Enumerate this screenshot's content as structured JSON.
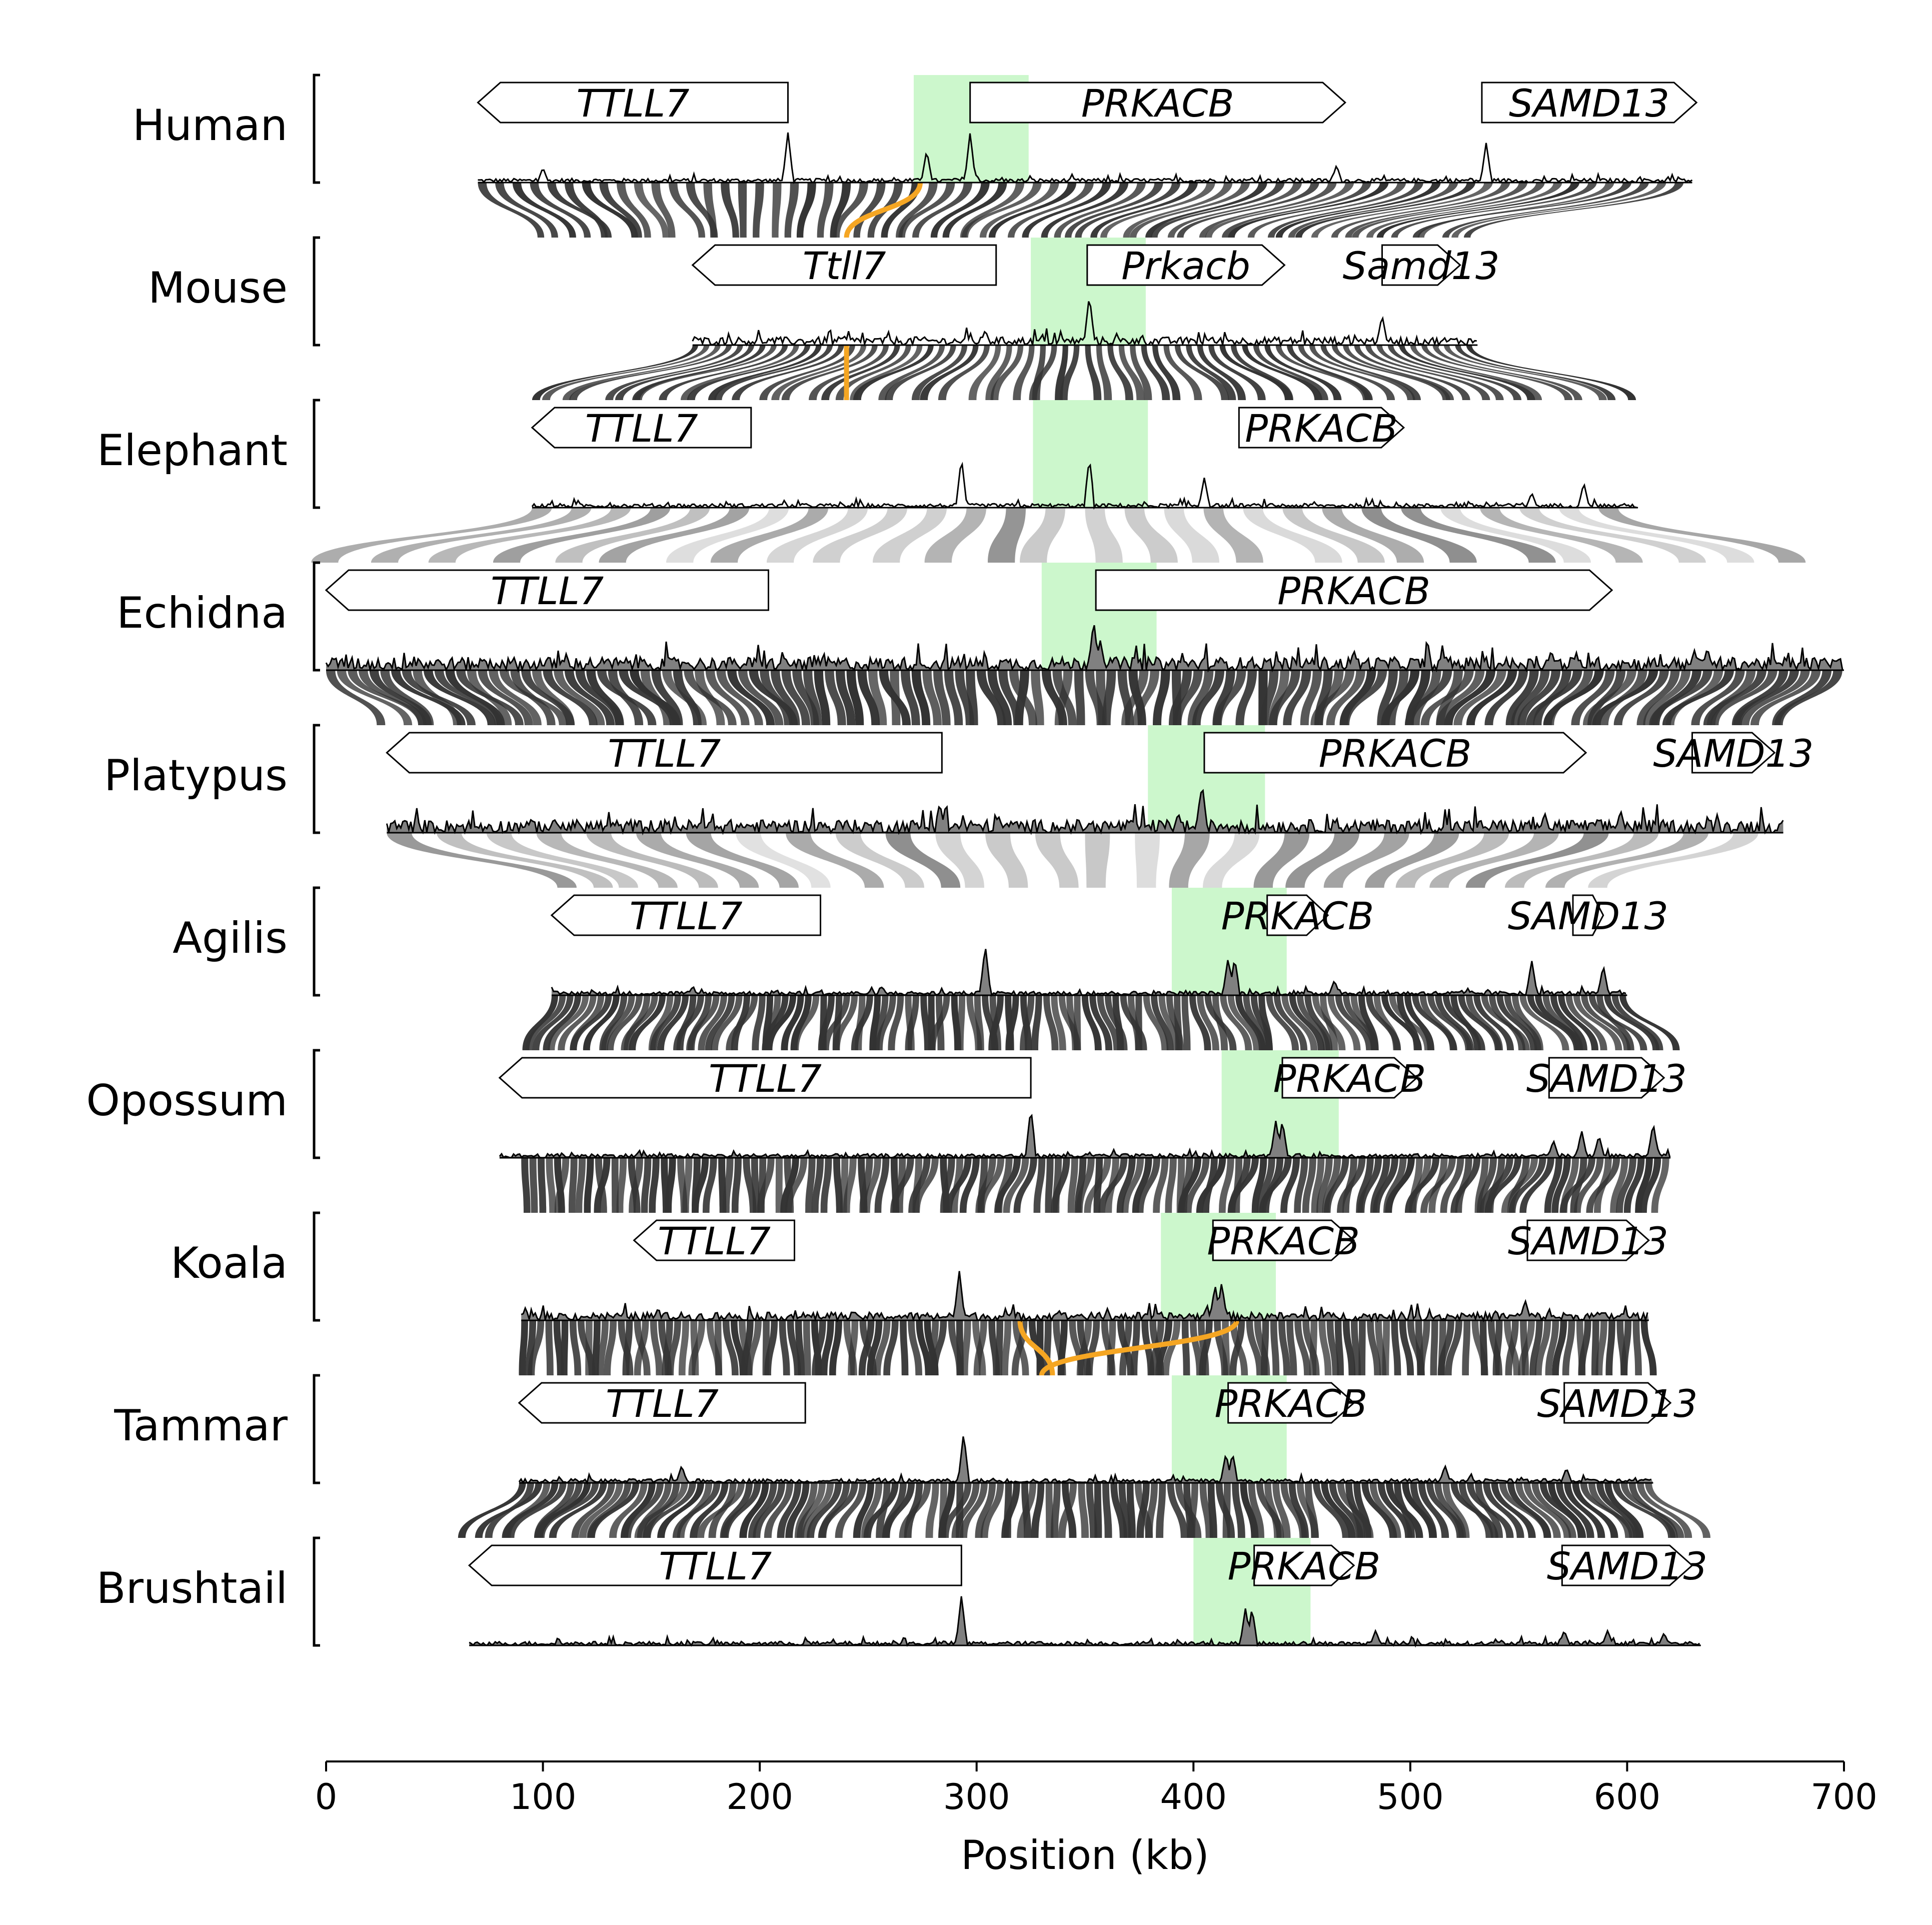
{
  "figure": {
    "xlabel": "Position (kb)",
    "x_ticks": [
      0,
      100,
      200,
      300,
      400,
      500,
      600,
      700
    ],
    "x_range": [
      0,
      700
    ]
  },
  "colors": {
    "gene_fill": "#ffffff",
    "gene_stroke": "#000000",
    "highlight": "#ccf7cc",
    "link_dark": "#333333",
    "link_inverted": "#f5a623",
    "track_fill": "#808080",
    "track_line": "#000000"
  },
  "tracks": [
    {
      "species": "Human",
      "range": [
        70,
        630
      ],
      "highlight": [
        271,
        324
      ],
      "peaks": [
        [
          100,
          0.3
        ],
        [
          213,
          1.0
        ],
        [
          277,
          0.65
        ],
        [
          297,
          1.0
        ],
        [
          466,
          0.35
        ],
        [
          535,
          0.8
        ]
      ],
      "noise": "low",
      "filled": false,
      "genes": [
        {
          "name": "TTLL7",
          "start": 70,
          "end": 213,
          "strand": "-"
        },
        {
          "name": "PRKACB",
          "start": 297,
          "end": 470,
          "strand": "+"
        },
        {
          "name": "SAMD13",
          "start": 533,
          "end": 632,
          "strand": "+"
        }
      ]
    },
    {
      "species": "Mouse",
      "range": [
        169,
        531
      ],
      "highlight": [
        325,
        378
      ],
      "peaks": [
        [
          352,
          1.0
        ],
        [
          304,
          0.3
        ],
        [
          487,
          0.6
        ]
      ],
      "noise": "medium",
      "filled": false,
      "genes": [
        {
          "name": "Ttll7",
          "start": 169,
          "end": 309,
          "strand": "-"
        },
        {
          "name": "Prkacb",
          "start": 351,
          "end": 442,
          "strand": "+"
        },
        {
          "name": "Samd13",
          "start": 487,
          "end": 523,
          "strand": "+"
        }
      ]
    },
    {
      "species": "Elephant",
      "range": [
        95,
        605
      ],
      "highlight": [
        326,
        379
      ],
      "peaks": [
        [
          293,
          1.0
        ],
        [
          352,
          1.0
        ],
        [
          405,
          0.6
        ],
        [
          580,
          0.5
        ],
        [
          556,
          0.3
        ]
      ],
      "noise": "low",
      "filled": false,
      "genes": [
        {
          "name": "TTLL7",
          "start": 95,
          "end": 196,
          "strand": "-"
        },
        {
          "name": "PRKACB",
          "start": 421,
          "end": 497,
          "strand": "+"
        }
      ]
    },
    {
      "species": "Echidna",
      "range": [
        0,
        700
      ],
      "highlight": [
        330,
        383
      ],
      "peaks": [
        [
          354,
          1.0
        ],
        [
          357,
          0.6
        ],
        [
          474,
          0.4
        ],
        [
          565,
          0.4
        ],
        [
          637,
          0.45
        ],
        [
          631,
          0.4
        ]
      ],
      "noise": "high",
      "filled": true,
      "genes": [
        {
          "name": "TTLL7",
          "start": 0,
          "end": 204,
          "strand": "-"
        },
        {
          "name": "PRKACB",
          "start": 355,
          "end": 593,
          "strand": "+"
        }
      ]
    },
    {
      "species": "Platypus",
      "range": [
        28,
        672
      ],
      "highlight": [
        379,
        433
      ],
      "peaks": [
        [
          283,
          0.6
        ],
        [
          310,
          0.35
        ],
        [
          404,
          1.0
        ],
        [
          393,
          0.4
        ],
        [
          562,
          0.4
        ],
        [
          597,
          0.45
        ]
      ],
      "noise": "high",
      "filled": true,
      "genes": [
        {
          "name": "TTLL7",
          "start": 28,
          "end": 284,
          "strand": "-"
        },
        {
          "name": "PRKACB",
          "start": 405,
          "end": 581,
          "strand": "+"
        },
        {
          "name": "SAMD13",
          "start": 630,
          "end": 668,
          "strand": "+"
        }
      ]
    },
    {
      "species": "Agilis",
      "range": [
        104,
        600
      ],
      "highlight": [
        390,
        443
      ],
      "peaks": [
        [
          304,
          1.0
        ],
        [
          416,
          0.75
        ],
        [
          419,
          0.75
        ],
        [
          556,
          0.7
        ],
        [
          589,
          0.6
        ],
        [
          465,
          0.3
        ]
      ],
      "noise": "low",
      "filled": true,
      "genes": [
        {
          "name": "TTLL7",
          "start": 104,
          "end": 228,
          "strand": "-"
        },
        {
          "name": "PRKACB",
          "start": 434,
          "end": 462,
          "strand": "+"
        },
        {
          "name": "SAMD13",
          "start": 575,
          "end": 589,
          "strand": "+"
        }
      ]
    },
    {
      "species": "Opossum",
      "range": [
        80,
        620
      ],
      "highlight": [
        413,
        467
      ],
      "peaks": [
        [
          325,
          1.0
        ],
        [
          438,
          0.75
        ],
        [
          441,
          0.75
        ],
        [
          566,
          0.35
        ],
        [
          579,
          0.55
        ],
        [
          612,
          0.7
        ],
        [
          587,
          0.45
        ]
      ],
      "noise": "low",
      "filled": true,
      "genes": [
        {
          "name": "TTLL7",
          "start": 80,
          "end": 325,
          "strand": "-"
        },
        {
          "name": "PRKACB",
          "start": 441,
          "end": 503,
          "strand": "+"
        },
        {
          "name": "SAMD13",
          "start": 564,
          "end": 617,
          "strand": "+"
        }
      ]
    },
    {
      "species": "Koala",
      "range": [
        90,
        610
      ],
      "highlight": [
        385,
        438
      ],
      "peaks": [
        [
          292,
          1.0
        ],
        [
          410,
          0.7
        ],
        [
          413,
          0.75
        ],
        [
          553,
          0.4
        ],
        [
          338,
          0.2
        ]
      ],
      "noise": "medium",
      "filled": true,
      "genes": [
        {
          "name": "TTLL7",
          "start": 142,
          "end": 216,
          "strand": "-"
        },
        {
          "name": "PRKACB",
          "start": 409,
          "end": 474,
          "strand": "+"
        },
        {
          "name": "SAMD13",
          "start": 554,
          "end": 610,
          "strand": "+"
        }
      ]
    },
    {
      "species": "Tammar",
      "range": [
        89,
        612
      ],
      "highlight": [
        390,
        443
      ],
      "peaks": [
        [
          294,
          1.0
        ],
        [
          415,
          0.6
        ],
        [
          418,
          0.6
        ],
        [
          164,
          0.35
        ],
        [
          516,
          0.35
        ],
        [
          572,
          0.3
        ]
      ],
      "noise": "low",
      "filled": true,
      "genes": [
        {
          "name": "TTLL7",
          "start": 89,
          "end": 221,
          "strand": "-"
        },
        {
          "name": "PRKACB",
          "start": 416,
          "end": 474,
          "strand": "+"
        },
        {
          "name": "SAMD13",
          "start": 571,
          "end": 620,
          "strand": "+"
        }
      ]
    },
    {
      "species": "Brushtail",
      "range": [
        66,
        634
      ],
      "highlight": [
        400,
        454
      ],
      "peaks": [
        [
          293,
          1.0
        ],
        [
          424,
          0.75
        ],
        [
          427,
          0.75
        ],
        [
          484,
          0.3
        ],
        [
          591,
          0.3
        ],
        [
          571,
          0.3
        ],
        [
          617,
          0.25
        ]
      ],
      "noise": "low",
      "filled": true,
      "genes": [
        {
          "name": "TTLL7",
          "start": 66,
          "end": 293,
          "strand": "-"
        },
        {
          "name": "PRKACB",
          "start": 428,
          "end": 474,
          "strand": "+"
        },
        {
          "name": "SAMD13",
          "start": 570,
          "end": 630,
          "strand": "+"
        }
      ]
    }
  ],
  "synteny_ribbons": [
    {
      "from": "Human",
      "to": "Mouse",
      "dense": false,
      "bands": [
        [
          70,
          630,
          100,
          530
        ]
      ],
      "inverted": [
        [
          274,
          240
        ]
      ]
    },
    {
      "from": "Mouse",
      "to": "Elephant",
      "dense": false,
      "bands": [
        [
          169,
          531,
          95,
          605
        ]
      ],
      "inverted": [
        [
          240,
          240
        ]
      ]
    },
    {
      "from": "Elephant",
      "to": "Echidna",
      "dense": false,
      "sparse": true,
      "bands": [
        [
          95,
          605,
          0,
          700
        ]
      ],
      "inverted": []
    },
    {
      "from": "Echidna",
      "to": "Platypus",
      "dense": true,
      "bands": [
        [
          0,
          700,
          28,
          672
        ]
      ],
      "inverted": []
    },
    {
      "from": "Platypus",
      "to": "Agilis",
      "dense": false,
      "sparse": true,
      "bands": [
        [
          28,
          672,
          104,
          600
        ]
      ],
      "inverted": []
    },
    {
      "from": "Agilis",
      "to": "Opossum",
      "dense": true,
      "bands": [
        [
          104,
          600,
          90,
          620
        ]
      ],
      "inverted": []
    },
    {
      "from": "Opossum",
      "to": "Koala",
      "dense": true,
      "bands": [
        [
          90,
          620,
          90,
          610
        ]
      ],
      "inverted": []
    },
    {
      "from": "Koala",
      "to": "Tammar",
      "dense": true,
      "bands": [
        [
          90,
          610,
          90,
          610
        ]
      ],
      "inverted": [
        [
          320,
          335
        ],
        [
          420,
          330
        ]
      ]
    },
    {
      "from": "Tammar",
      "to": "Brushtail",
      "dense": true,
      "bands": [
        [
          89,
          612,
          66,
          634
        ]
      ],
      "inverted": []
    }
  ]
}
